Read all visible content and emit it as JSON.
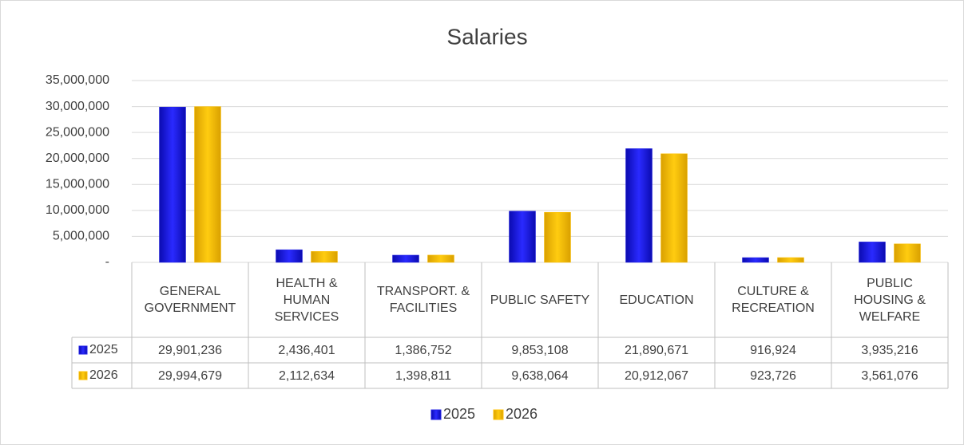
{
  "chart_data": {
    "type": "bar",
    "title": "Salaries",
    "categories": [
      "GENERAL GOVERNMENT",
      "HEALTH & HUMAN SERVICES",
      "TRANSPORT. & FACILITIES",
      "PUBLIC SAFETY",
      "EDUCATION",
      "CULTURE & RECREATION",
      "PUBLIC HOUSING & WELFARE"
    ],
    "series": [
      {
        "name": "2025",
        "color": "#1f1fe6",
        "values": [
          29901236,
          2436401,
          1386752,
          9853108,
          21890671,
          916924,
          3935216
        ],
        "value_labels": [
          "29,901,236",
          "2,436,401",
          "1,386,752",
          "9,853,108",
          "21,890,671",
          "916,924",
          "3,935,216"
        ]
      },
      {
        "name": "2026",
        "color": "#ffc000",
        "values": [
          29994679,
          2112634,
          1398811,
          9638064,
          20912067,
          923726,
          3561076
        ],
        "value_labels": [
          "29,994,679",
          "2,112,634",
          "1,398,811",
          "9,638,064",
          "20,912,067",
          "923,726",
          "3,561,076"
        ]
      }
    ],
    "ylim": [
      0,
      35000000
    ],
    "yticks": [
      {
        "value": 0,
        "label": "-"
      },
      {
        "value": 5000000,
        "label": "5,000,000"
      },
      {
        "value": 10000000,
        "label": "10,000,000"
      },
      {
        "value": 15000000,
        "label": "15,000,000"
      },
      {
        "value": 20000000,
        "label": "20,000,000"
      },
      {
        "value": 25000000,
        "label": "25,000,000"
      },
      {
        "value": 30000000,
        "label": "30,000,000"
      },
      {
        "value": 35000000,
        "label": "35,000,000"
      }
    ],
    "grid": true,
    "legend": "bottom"
  }
}
